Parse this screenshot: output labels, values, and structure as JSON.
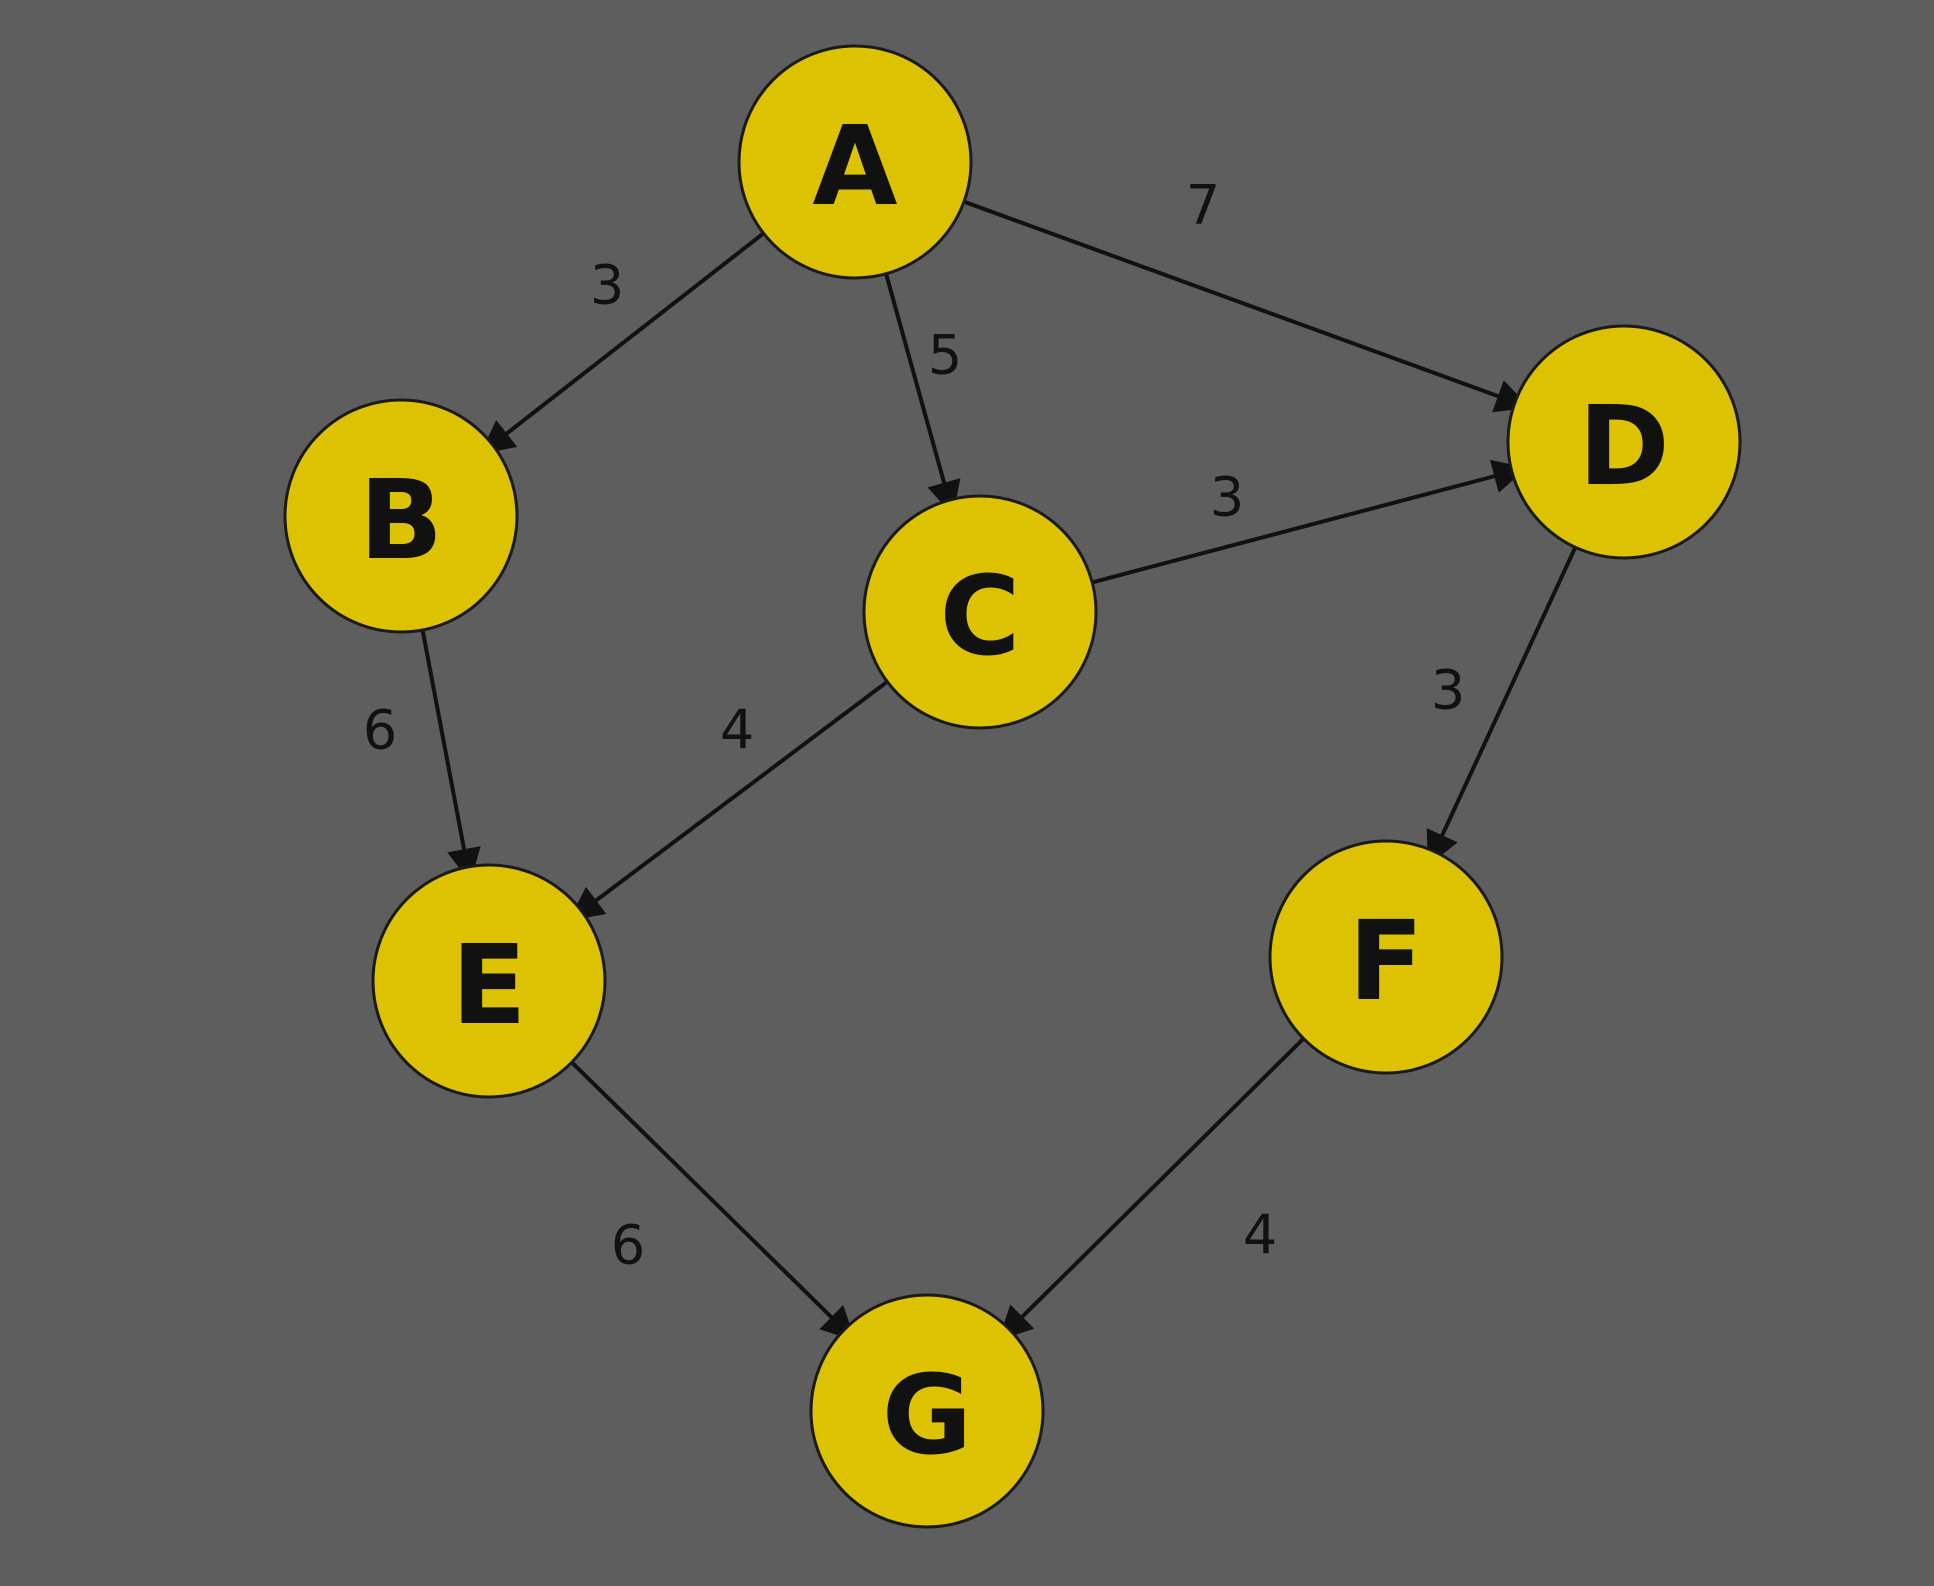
{
  "colors": {
    "background": "#5e5e5e",
    "node_fill": "#dcc200",
    "ink": "#111111"
  },
  "nodes": [
    {
      "id": "A",
      "label": "A"
    },
    {
      "id": "B",
      "label": "B"
    },
    {
      "id": "C",
      "label": "C"
    },
    {
      "id": "D",
      "label": "D"
    },
    {
      "id": "E",
      "label": "E"
    },
    {
      "id": "F",
      "label": "F"
    },
    {
      "id": "G",
      "label": "G"
    }
  ],
  "edges": [
    {
      "from": "A",
      "to": "B",
      "weight": "3"
    },
    {
      "from": "A",
      "to": "C",
      "weight": "5"
    },
    {
      "from": "A",
      "to": "D",
      "weight": "7"
    },
    {
      "from": "C",
      "to": "D",
      "weight": "3"
    },
    {
      "from": "B",
      "to": "E",
      "weight": "6"
    },
    {
      "from": "C",
      "to": "E",
      "weight": "4"
    },
    {
      "from": "D",
      "to": "F",
      "weight": "3"
    },
    {
      "from": "E",
      "to": "G",
      "weight": "6"
    },
    {
      "from": "F",
      "to": "G",
      "weight": "4"
    }
  ]
}
